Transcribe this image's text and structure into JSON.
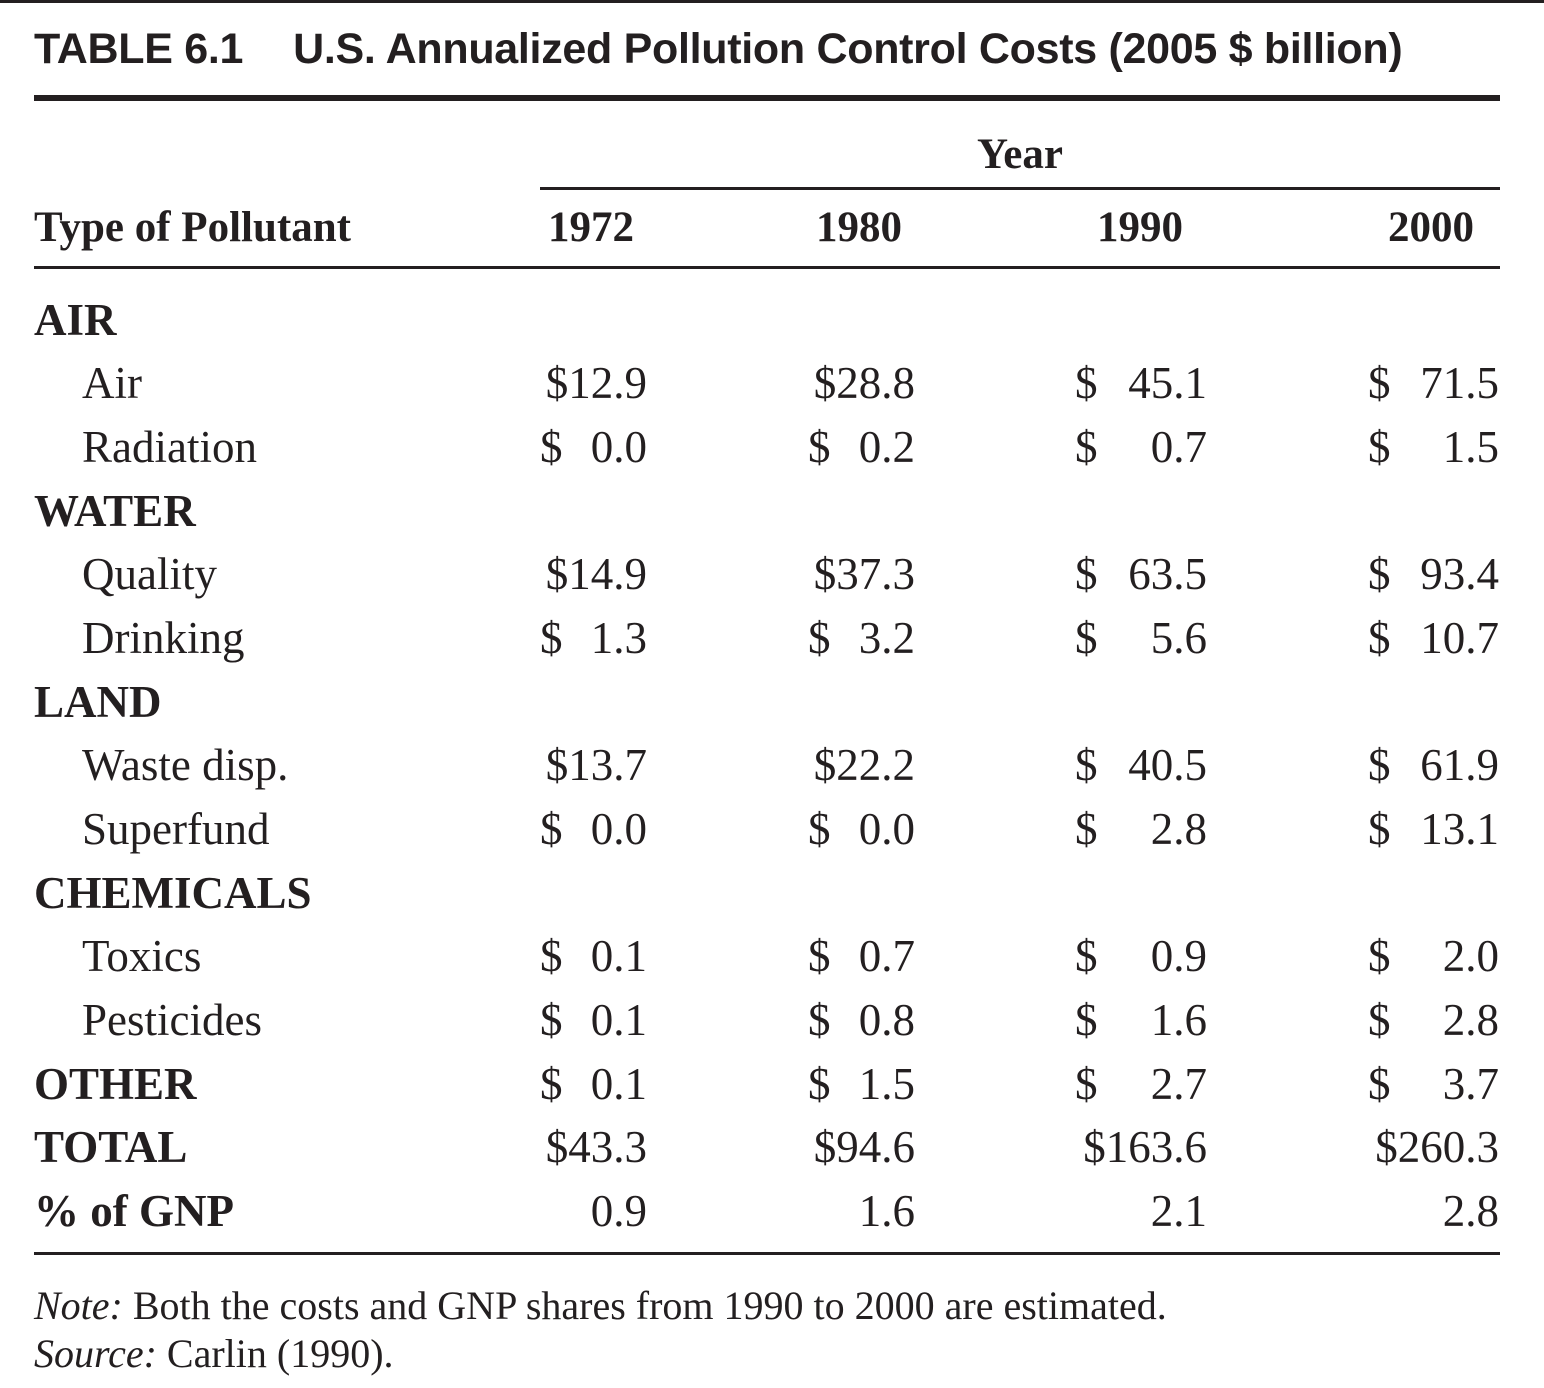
{
  "table": {
    "number": "TABLE 6.1",
    "title": "U.S. Annualized Pollution Control Costs (2005 $ billion)",
    "year_header": "Year",
    "row_header": "Type of Pollutant",
    "years": [
      "1972",
      "1980",
      "1990",
      "2000"
    ],
    "rows": [
      {
        "type": "group",
        "label": "AIR",
        "values": []
      },
      {
        "type": "sub",
        "label": "Air",
        "values": [
          "$12.9",
          "$28.8",
          "$ 45.1",
          "$ 71.5"
        ]
      },
      {
        "type": "sub",
        "label": "Radiation",
        "values": [
          "$ 0.0",
          "$ 0.2",
          "$ 0.7",
          "$ 1.5"
        ]
      },
      {
        "type": "group",
        "label": "WATER",
        "values": []
      },
      {
        "type": "sub",
        "label": "Quality",
        "values": [
          "$14.9",
          "$37.3",
          "$ 63.5",
          "$ 93.4"
        ]
      },
      {
        "type": "sub",
        "label": "Drinking",
        "values": [
          "$ 1.3",
          "$ 3.2",
          "$ 5.6",
          "$ 10.7"
        ]
      },
      {
        "type": "group",
        "label": "LAND",
        "values": []
      },
      {
        "type": "sub",
        "label": "Waste disp.",
        "values": [
          "$13.7",
          "$22.2",
          "$ 40.5",
          "$ 61.9"
        ]
      },
      {
        "type": "sub",
        "label": "Superfund",
        "values": [
          "$ 0.0",
          "$ 0.0",
          "$ 2.8",
          "$ 13.1"
        ]
      },
      {
        "type": "group",
        "label": "CHEMICALS",
        "values": []
      },
      {
        "type": "sub",
        "label": "Toxics",
        "values": [
          "$ 0.1",
          "$ 0.7",
          "$ 0.9",
          "$ 2.0"
        ]
      },
      {
        "type": "sub",
        "label": "Pesticides",
        "values": [
          "$ 0.1",
          "$ 0.8",
          "$ 1.6",
          "$ 2.8"
        ]
      },
      {
        "type": "group",
        "label": "OTHER",
        "values": [
          "$ 0.1",
          "$ 1.5",
          "$ 2.7",
          "$ 3.7"
        ]
      },
      {
        "type": "group",
        "label": "TOTAL",
        "values": [
          "$43.3",
          "$94.6",
          "$163.6",
          "$260.3"
        ]
      },
      {
        "type": "group",
        "label": "% of GNP",
        "values": [
          "0.9",
          "1.6",
          "2.1",
          "2.8"
        ]
      }
    ],
    "note_label": "Note:",
    "note_text": " Both the costs and GNP shares from 1990 to 2000 are estimated.",
    "source_label": "Source:",
    "source_text": " Carlin (1990)."
  }
}
